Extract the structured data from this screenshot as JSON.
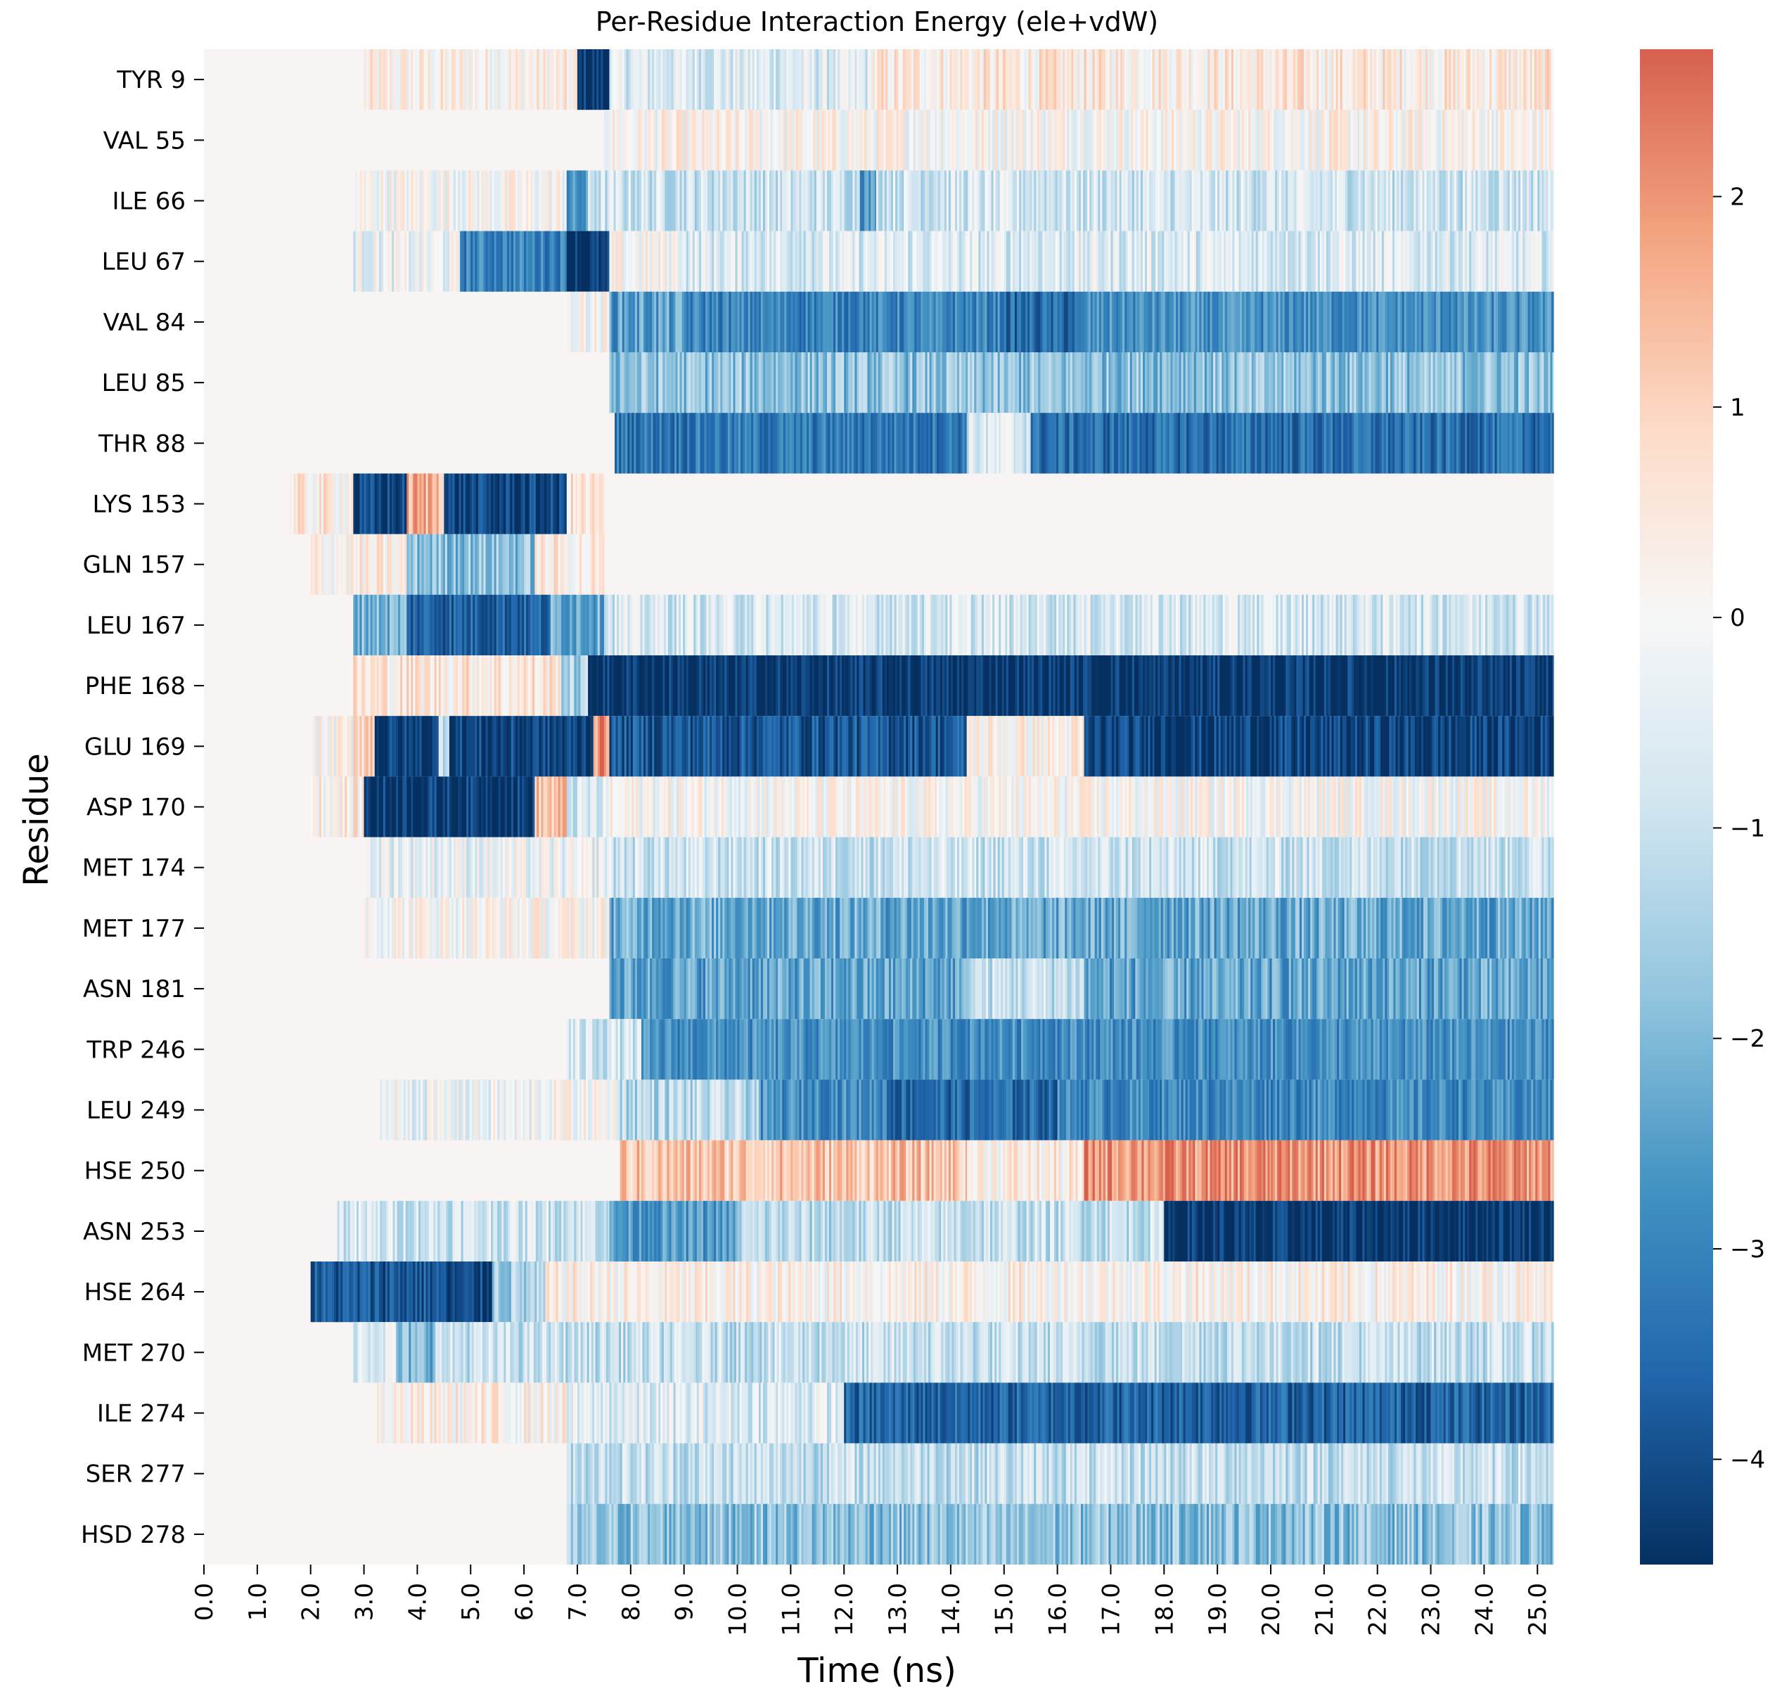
{
  "chart_data": {
    "type": "heatmap",
    "title": "Per-Residue Interaction Energy (ele+vdW)",
    "xlabel": "Time (ns)",
    "ylabel": "Residue",
    "x_range": [
      0.0,
      25.3
    ],
    "x_ticks": [
      "0.0",
      "1.0",
      "2.0",
      "3.0",
      "4.0",
      "5.0",
      "6.0",
      "7.0",
      "8.0",
      "9.0",
      "10.0",
      "11.0",
      "12.0",
      "13.0",
      "14.0",
      "15.0",
      "16.0",
      "17.0",
      "18.0",
      "19.0",
      "20.0",
      "21.0",
      "22.0",
      "23.0",
      "24.0",
      "25.0"
    ],
    "residues": [
      "TYR 9",
      "VAL 55",
      "ILE 66",
      "LEU 67",
      "VAL 84",
      "LEU 85",
      "THR 88",
      "LYS 153",
      "GLN 157",
      "LEU 167",
      "PHE 168",
      "GLU 169",
      "ASP 170",
      "MET 174",
      "MET 177",
      "ASN 181",
      "TRP 246",
      "LEU 249",
      "HSE 250",
      "ASN 253",
      "HSE 264",
      "MET 270",
      "ILE 274",
      "SER 277",
      "HSD 278"
    ],
    "colorbar": {
      "min": -4.5,
      "max": 2.7,
      "ticks": [
        2,
        1,
        0,
        -1,
        -2,
        -3,
        -4
      ],
      "tick_labels": [
        "2",
        "1",
        "0",
        "−1",
        "−2",
        "−3",
        "−4"
      ],
      "colormap": "RdBu_r"
    },
    "segments": [
      [
        [
          3.0,
          7.0,
          0.2
        ],
        [
          7.0,
          7.6,
          -4.4
        ],
        [
          7.6,
          12.5,
          -0.6
        ],
        [
          12.5,
          25.3,
          0.4
        ]
      ],
      [
        [
          7.5,
          25.3,
          0.1
        ]
      ],
      [
        [
          2.8,
          6.8,
          0.0
        ],
        [
          6.8,
          7.2,
          -2.8
        ],
        [
          7.2,
          12.3,
          -0.9
        ],
        [
          12.3,
          12.6,
          -2.6
        ],
        [
          12.6,
          25.3,
          -0.8
        ]
      ],
      [
        [
          2.8,
          4.8,
          -0.3
        ],
        [
          4.8,
          6.8,
          -3.0
        ],
        [
          6.8,
          7.6,
          -4.4
        ],
        [
          7.6,
          9.0,
          0.0
        ],
        [
          9.0,
          25.3,
          -0.6
        ]
      ],
      [
        [
          6.8,
          7.6,
          0.0
        ],
        [
          7.6,
          9.0,
          -2.5
        ],
        [
          9.0,
          15.0,
          -3.0
        ],
        [
          15.0,
          16.5,
          -3.5
        ],
        [
          16.5,
          25.3,
          -2.8
        ]
      ],
      [
        [
          7.6,
          25.3,
          -1.8
        ]
      ],
      [
        [
          7.7,
          14.3,
          -3.2
        ],
        [
          14.3,
          15.5,
          -0.6
        ],
        [
          15.5,
          20.0,
          -3.4
        ],
        [
          20.0,
          25.3,
          -3.4
        ]
      ],
      [
        [
          1.6,
          2.8,
          0.3
        ],
        [
          2.8,
          3.8,
          -4.2
        ],
        [
          3.8,
          4.5,
          1.6
        ],
        [
          4.5,
          6.8,
          -4.2
        ],
        [
          6.8,
          7.5,
          0.4
        ]
      ],
      [
        [
          2.0,
          3.8,
          0.2
        ],
        [
          3.8,
          6.2,
          -1.8
        ],
        [
          6.2,
          7.5,
          0.3
        ]
      ],
      [
        [
          2.8,
          3.8,
          -2.0
        ],
        [
          3.8,
          6.5,
          -3.6
        ],
        [
          6.5,
          7.5,
          -2.2
        ],
        [
          7.5,
          25.3,
          -0.7
        ]
      ],
      [
        [
          2.8,
          6.7,
          0.5
        ],
        [
          6.7,
          7.2,
          -1.5
        ],
        [
          7.2,
          25.3,
          -4.4
        ]
      ],
      [
        [
          2.0,
          2.8,
          0.0
        ],
        [
          2.8,
          3.2,
          1.2
        ],
        [
          3.2,
          4.4,
          -4.3
        ],
        [
          4.4,
          4.6,
          -0.8
        ],
        [
          4.6,
          7.3,
          -4.2
        ],
        [
          7.3,
          7.6,
          2.0
        ],
        [
          7.6,
          14.3,
          -3.8
        ],
        [
          14.3,
          16.5,
          0.2
        ],
        [
          16.5,
          25.3,
          -4.2
        ]
      ],
      [
        [
          2.0,
          3.0,
          0.3
        ],
        [
          3.0,
          6.2,
          -4.3
        ],
        [
          6.2,
          6.8,
          1.2
        ],
        [
          6.8,
          7.5,
          -0.8
        ],
        [
          7.5,
          25.3,
          0.0
        ]
      ],
      [
        [
          3.0,
          7.6,
          -0.3
        ],
        [
          7.6,
          25.3,
          -0.9
        ]
      ],
      [
        [
          3.0,
          7.6,
          0.1
        ],
        [
          7.6,
          12.7,
          -2.2
        ],
        [
          12.7,
          25.3,
          -2.3
        ]
      ],
      [
        [
          7.6,
          14.3,
          -2.4
        ],
        [
          14.3,
          16.5,
          -1.0
        ],
        [
          16.5,
          25.3,
          -2.4
        ]
      ],
      [
        [
          6.8,
          8.2,
          -0.8
        ],
        [
          8.2,
          25.3,
          -2.8
        ]
      ],
      [
        [
          3.3,
          6.2,
          -0.3
        ],
        [
          6.2,
          7.8,
          0.0
        ],
        [
          7.8,
          10.4,
          -1.2
        ],
        [
          10.4,
          12.8,
          -2.8
        ],
        [
          12.8,
          16.0,
          -3.5
        ],
        [
          16.0,
          25.3,
          -2.9
        ]
      ],
      [
        [
          7.8,
          14.3,
          1.2
        ],
        [
          14.3,
          16.5,
          0.3
        ],
        [
          16.5,
          20.0,
          2.0
        ],
        [
          20.0,
          25.3,
          2.0
        ]
      ],
      [
        [
          2.5,
          7.6,
          -0.8
        ],
        [
          7.6,
          10.0,
          -2.6
        ],
        [
          10.0,
          12.5,
          -1.2
        ],
        [
          12.5,
          18.0,
          -1.0
        ],
        [
          18.0,
          25.3,
          -4.4
        ]
      ],
      [
        [
          2.0,
          4.5,
          -3.8
        ],
        [
          4.5,
          5.4,
          -4.2
        ],
        [
          5.4,
          6.4,
          -1.5
        ],
        [
          6.4,
          25.3,
          0.2
        ]
      ],
      [
        [
          2.8,
          3.6,
          -0.4
        ],
        [
          3.6,
          4.3,
          -2.0
        ],
        [
          4.3,
          25.3,
          -1.0
        ]
      ],
      [
        [
          3.2,
          6.8,
          0.2
        ],
        [
          6.8,
          12.0,
          -0.6
        ],
        [
          12.0,
          25.3,
          -3.6
        ]
      ],
      [
        [
          6.8,
          25.3,
          -1.0
        ]
      ],
      [
        [
          6.8,
          25.3,
          -1.8
        ]
      ]
    ]
  }
}
